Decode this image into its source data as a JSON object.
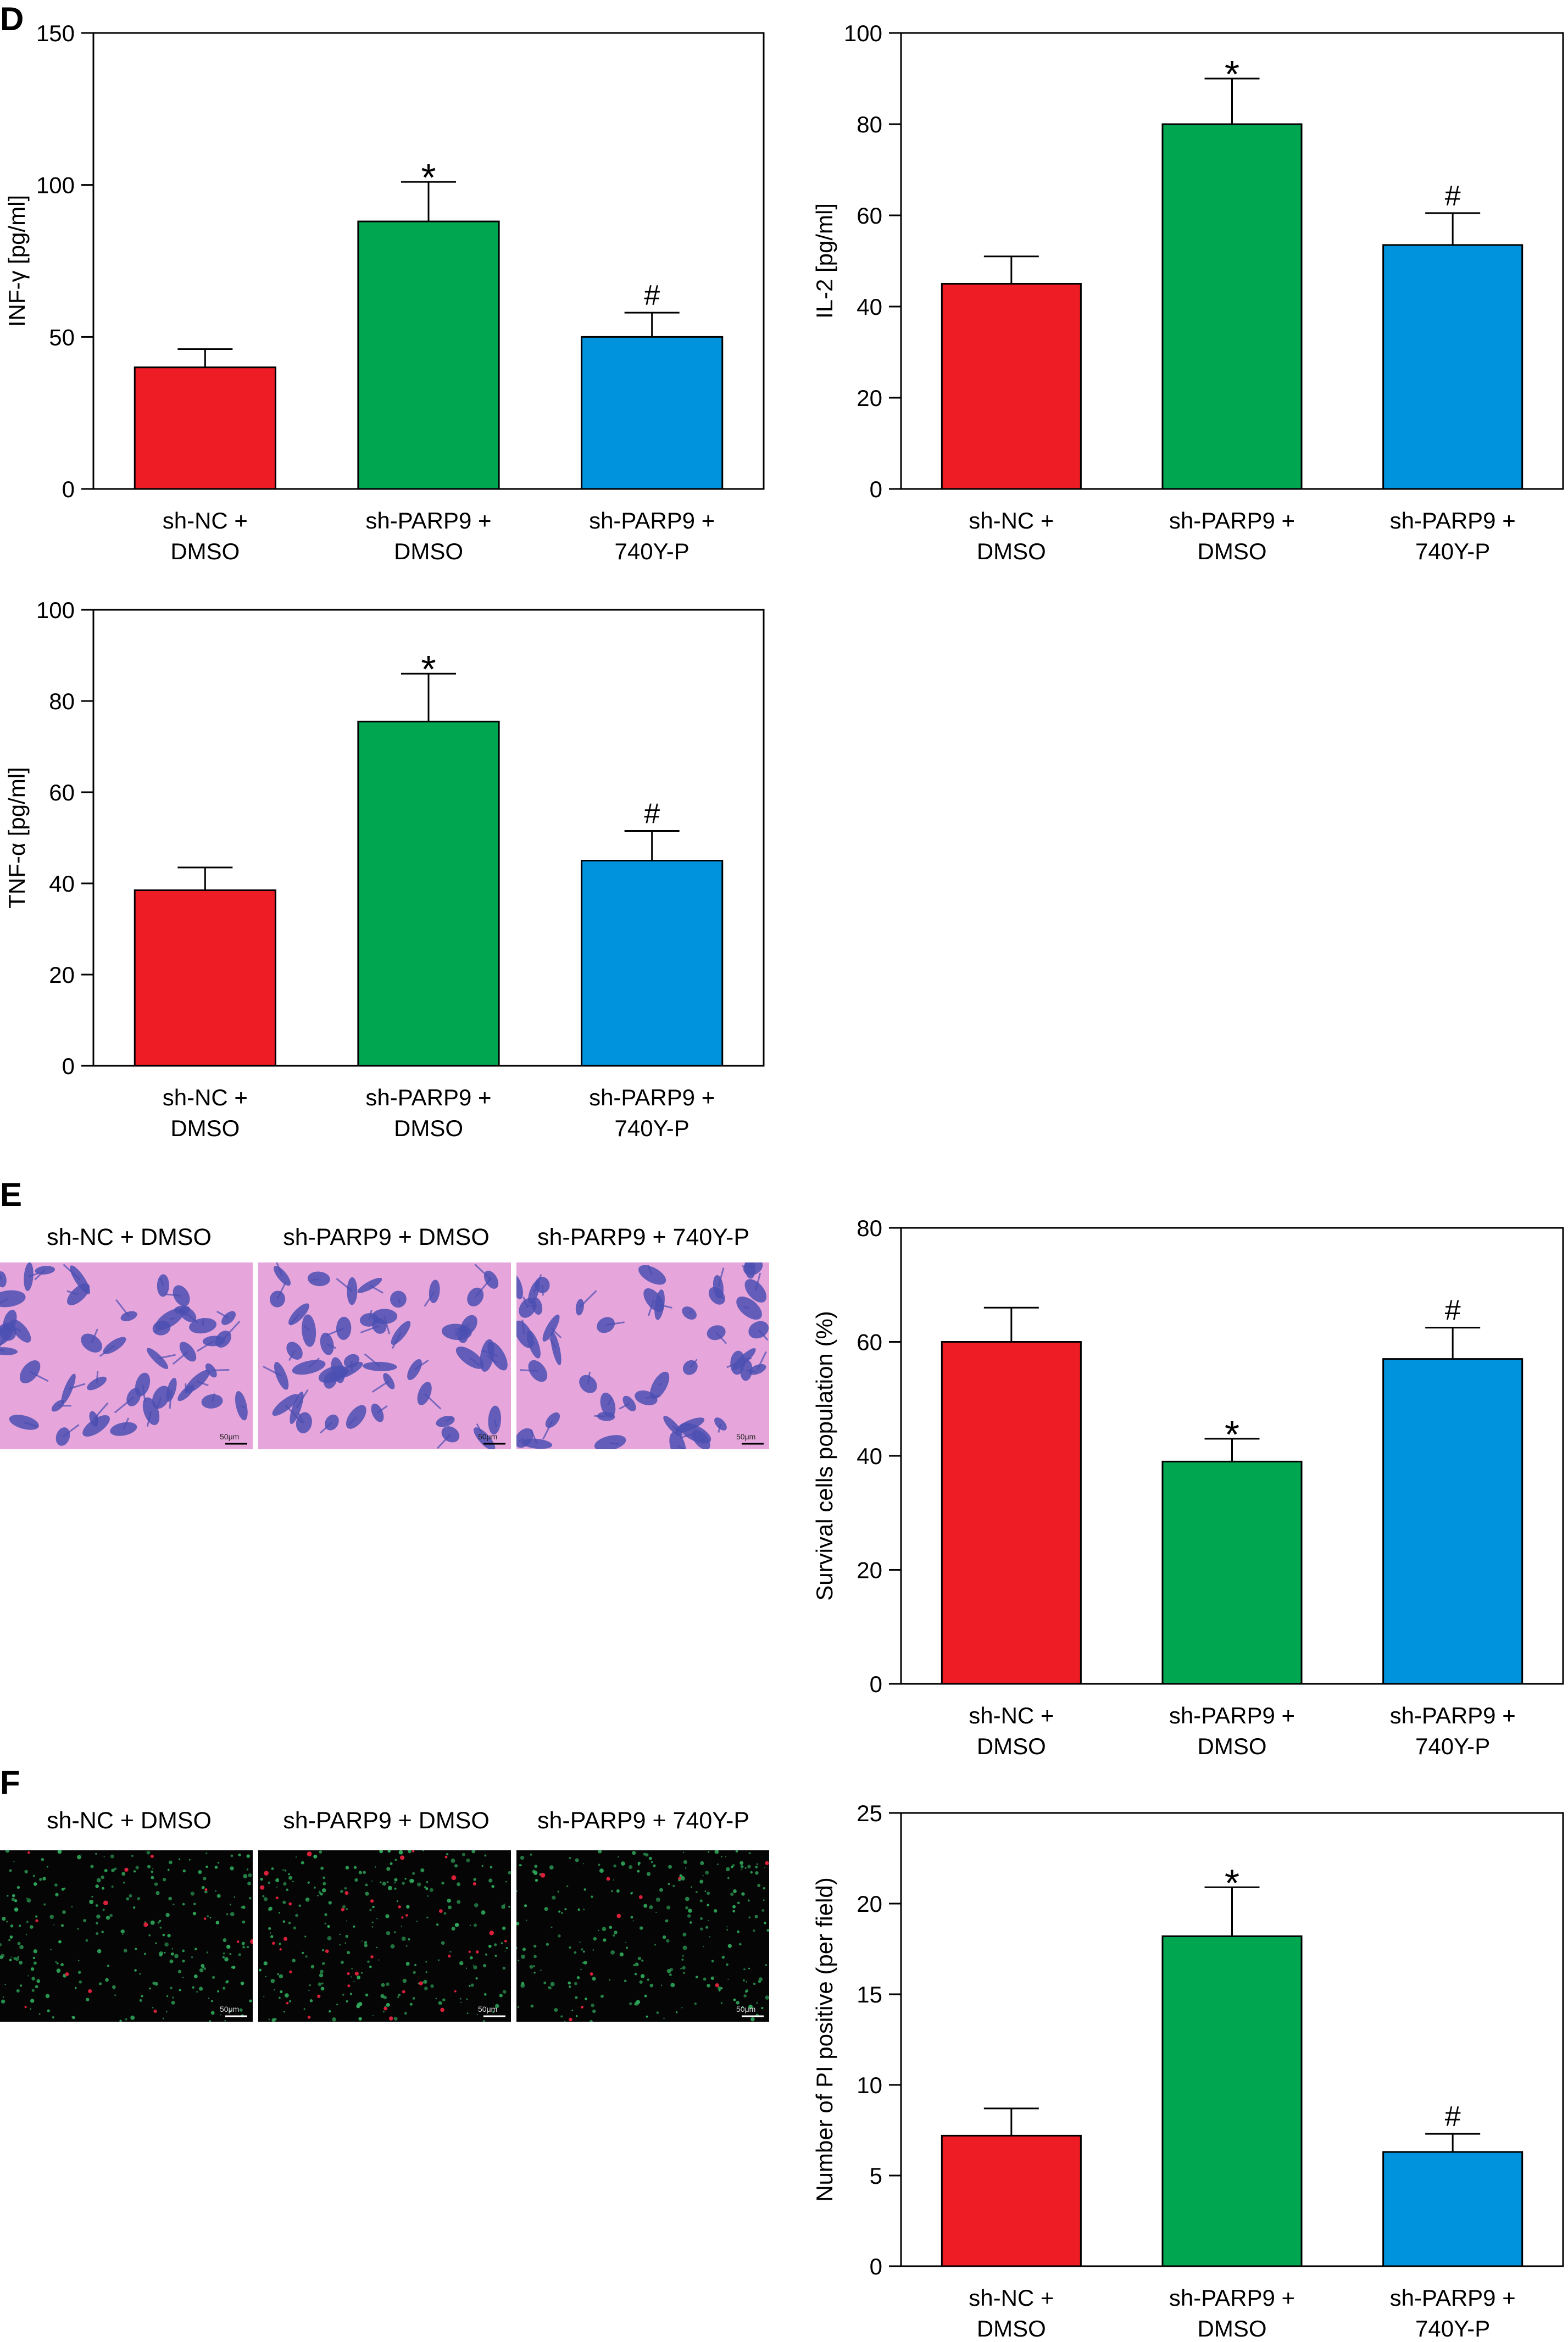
{
  "panels": {
    "D": "D",
    "E": "E",
    "F": "F"
  },
  "colors": {
    "red": "#ee1c25",
    "green": "#00a650",
    "blue": "#0093dd",
    "stain_bg": "#e6a6dc",
    "cell": "#4b4fb2",
    "fluor_bg": "#050505"
  },
  "micrographs": {
    "E": {
      "labels": [
        "sh-NC + DMSO",
        "sh-PARP9 + DMSO",
        "sh-PARP9 + 740Y-P"
      ],
      "scale": "50μm"
    },
    "F": {
      "labels": [
        "sh-NC + DMSO",
        "sh-PARP9 + DMSO",
        "sh-PARP9 + 740Y-P"
      ],
      "scale": "50μm"
    }
  },
  "chart_data": [
    {
      "id": "ifn",
      "type": "bar",
      "ylabel": "INF-γ [pg/ml]",
      "ylim": [
        0,
        150
      ],
      "yticks": [
        0,
        50,
        100,
        150
      ],
      "categories": [
        [
          "sh-NC +",
          "DMSO"
        ],
        [
          "sh-PARP9 +",
          "DMSO"
        ],
        [
          "sh-PARP9 +",
          "740Y-P"
        ]
      ],
      "values": [
        40,
        88,
        50
      ],
      "errors": [
        6,
        13,
        8
      ],
      "annotations": [
        "",
        "*",
        "#"
      ]
    },
    {
      "id": "il2",
      "type": "bar",
      "ylabel": "IL-2 [pg/ml]",
      "ylim": [
        0,
        100
      ],
      "yticks": [
        0,
        20,
        40,
        60,
        80,
        100
      ],
      "categories": [
        [
          "sh-NC +",
          "DMSO"
        ],
        [
          "sh-PARP9 +",
          "DMSO"
        ],
        [
          "sh-PARP9 +",
          "740Y-P"
        ]
      ],
      "values": [
        45,
        80,
        53.5
      ],
      "errors": [
        6,
        10,
        7
      ],
      "annotations": [
        "",
        "*",
        "#"
      ]
    },
    {
      "id": "tnf",
      "type": "bar",
      "ylabel": "TNF-α [pg/ml]",
      "ylim": [
        0,
        100
      ],
      "yticks": [
        0,
        20,
        40,
        60,
        80,
        100
      ],
      "categories": [
        [
          "sh-NC +",
          "DMSO"
        ],
        [
          "sh-PARP9 +",
          "DMSO"
        ],
        [
          "sh-PARP9 +",
          "740Y-P"
        ]
      ],
      "values": [
        38.5,
        75.5,
        45
      ],
      "errors": [
        5,
        10.5,
        6.5
      ],
      "annotations": [
        "",
        "*",
        "#"
      ]
    },
    {
      "id": "survival",
      "type": "bar",
      "ylabel": "Survival cells population (%)",
      "ylim": [
        0,
        80
      ],
      "yticks": [
        0,
        20,
        40,
        60,
        80
      ],
      "categories": [
        [
          "sh-NC +",
          "DMSO"
        ],
        [
          "sh-PARP9 +",
          "DMSO"
        ],
        [
          "sh-PARP9 +",
          "740Y-P"
        ]
      ],
      "values": [
        60,
        39,
        57
      ],
      "errors": [
        6,
        4,
        5.5
      ],
      "annotations": [
        "",
        "*",
        "#"
      ]
    },
    {
      "id": "pi",
      "type": "bar",
      "ylabel": "Number of PI positive (per field)",
      "ylim": [
        0,
        25
      ],
      "yticks": [
        0,
        5,
        10,
        15,
        20,
        25
      ],
      "categories": [
        [
          "sh-NC +",
          "DMSO"
        ],
        [
          "sh-PARP9 +",
          "DMSO"
        ],
        [
          "sh-PARP9 +",
          "740Y-P"
        ]
      ],
      "values": [
        7.2,
        18.2,
        6.3
      ],
      "errors": [
        1.5,
        2.7,
        1.0
      ],
      "annotations": [
        "",
        "*",
        "#"
      ]
    }
  ]
}
